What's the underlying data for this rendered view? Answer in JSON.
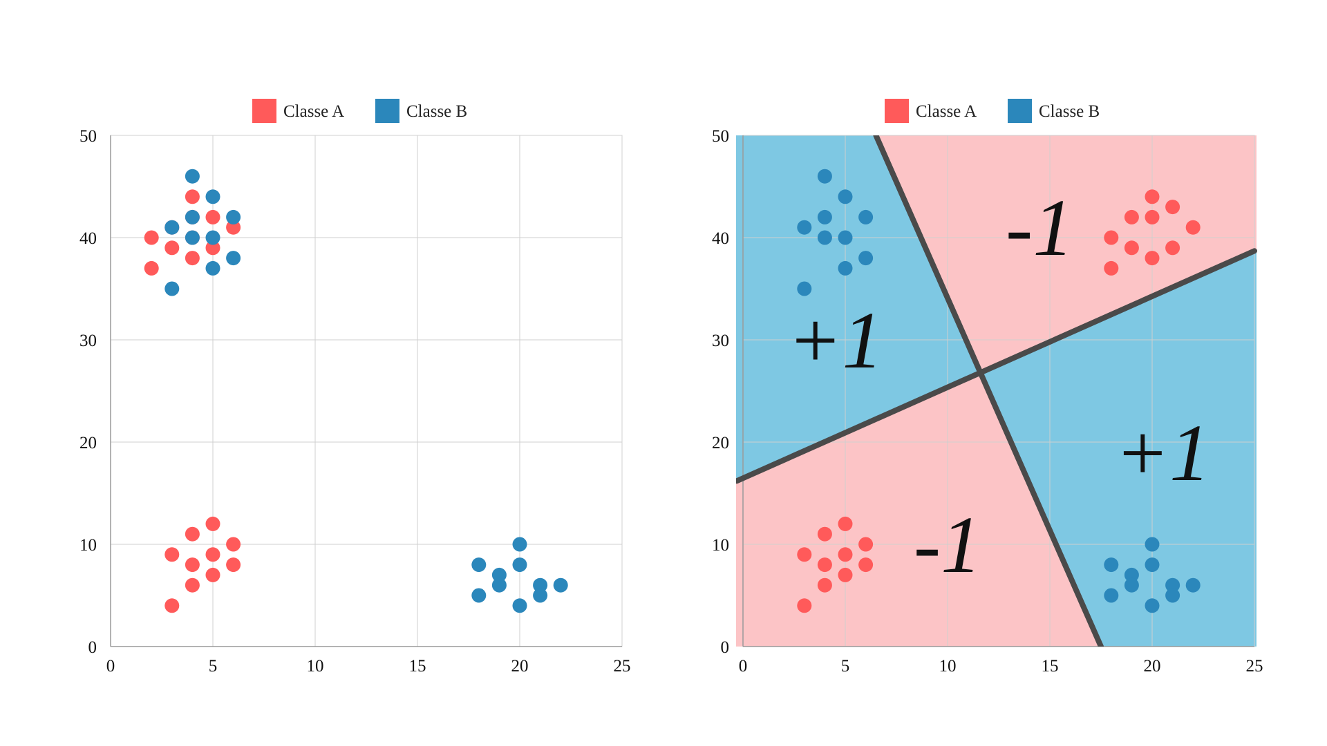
{
  "colors": {
    "classe_a": "#ff5a5a",
    "classe_b": "#2b87bb",
    "region_plus": "#7ec8e3",
    "region_minus": "#fcc4c6",
    "boundary": "#4a4a4a"
  },
  "chart_data": [
    {
      "type": "scatter",
      "title": "",
      "xlabel": "",
      "ylabel": "",
      "xlim": [
        0,
        25
      ],
      "ylim": [
        0,
        50
      ],
      "x_ticks": [
        "0",
        "5",
        "10",
        "15",
        "20",
        "25"
      ],
      "y_ticks": [
        "0",
        "10",
        "20",
        "30",
        "40",
        "50"
      ],
      "grid": true,
      "legend_position": "top-center",
      "series": [
        {
          "name": "Classe A",
          "points": [
            [
              4,
              44
            ],
            [
              3,
              41
            ],
            [
              4,
              42
            ],
            [
              5,
              42
            ],
            [
              4,
              40
            ],
            [
              6,
              41
            ],
            [
              2,
              40
            ],
            [
              2,
              37
            ],
            [
              3,
              39
            ],
            [
              5,
              39
            ],
            [
              4,
              38
            ],
            [
              5,
              12
            ],
            [
              4,
              11
            ],
            [
              6,
              10
            ],
            [
              3,
              9
            ],
            [
              5,
              9
            ],
            [
              4,
              8
            ],
            [
              6,
              8
            ],
            [
              5,
              7
            ],
            [
              4,
              6
            ],
            [
              3,
              4
            ]
          ]
        },
        {
          "name": "Classe B",
          "points": [
            [
              4,
              46
            ],
            [
              5,
              44
            ],
            [
              4,
              42
            ],
            [
              6,
              42
            ],
            [
              3,
              41
            ],
            [
              4,
              40
            ],
            [
              5,
              40
            ],
            [
              6,
              38
            ],
            [
              5,
              37
            ],
            [
              3,
              35
            ],
            [
              20,
              10
            ],
            [
              18,
              8
            ],
            [
              20,
              8
            ],
            [
              19,
              7
            ],
            [
              19,
              6
            ],
            [
              21,
              6
            ],
            [
              22,
              6
            ],
            [
              18,
              5
            ],
            [
              21,
              5
            ],
            [
              20,
              4
            ]
          ]
        }
      ]
    },
    {
      "type": "scatter",
      "title": "",
      "xlabel": "",
      "ylabel": "",
      "xlim": [
        0,
        25
      ],
      "ylim": [
        0,
        50
      ],
      "x_ticks": [
        "0",
        "5",
        "10",
        "15",
        "20",
        "25"
      ],
      "y_ticks": [
        "0",
        "10",
        "20",
        "30",
        "40",
        "50"
      ],
      "grid": true,
      "legend_position": "top-center",
      "series": [
        {
          "name": "Classe A",
          "points": [
            [
              20,
              44
            ],
            [
              19,
              42
            ],
            [
              20,
              42
            ],
            [
              21,
              43
            ],
            [
              22,
              41
            ],
            [
              18,
              40
            ],
            [
              19,
              39
            ],
            [
              21,
              39
            ],
            [
              20,
              38
            ],
            [
              18,
              37
            ],
            [
              5,
              12
            ],
            [
              4,
              11
            ],
            [
              6,
              10
            ],
            [
              3,
              9
            ],
            [
              5,
              9
            ],
            [
              4,
              8
            ],
            [
              6,
              8
            ],
            [
              5,
              7
            ],
            [
              4,
              6
            ],
            [
              3,
              4
            ]
          ]
        },
        {
          "name": "Classe B",
          "points": [
            [
              4,
              46
            ],
            [
              5,
              44
            ],
            [
              4,
              42
            ],
            [
              6,
              42
            ],
            [
              3,
              41
            ],
            [
              4,
              40
            ],
            [
              5,
              40
            ],
            [
              6,
              38
            ],
            [
              5,
              37
            ],
            [
              3,
              35
            ],
            [
              20,
              10
            ],
            [
              18,
              8
            ],
            [
              20,
              8
            ],
            [
              19,
              7
            ],
            [
              19,
              6
            ],
            [
              21,
              6
            ],
            [
              22,
              6
            ],
            [
              18,
              5
            ],
            [
              21,
              5
            ],
            [
              20,
              4
            ]
          ]
        }
      ],
      "decision_lines": [
        {
          "from": [
            6.5,
            50
          ],
          "to": [
            17.5,
            0
          ]
        },
        {
          "from": [
            -0.3,
            16.2
          ],
          "to": [
            25,
            38.7
          ]
        }
      ],
      "region_labels": [
        {
          "text": "+1",
          "at": [
            4.5,
            30
          ]
        },
        {
          "text": "-1",
          "at": [
            14.5,
            41
          ]
        },
        {
          "text": "-1",
          "at": [
            10,
            10
          ]
        },
        {
          "text": "+1",
          "at": [
            20.5,
            19
          ]
        }
      ]
    }
  ]
}
